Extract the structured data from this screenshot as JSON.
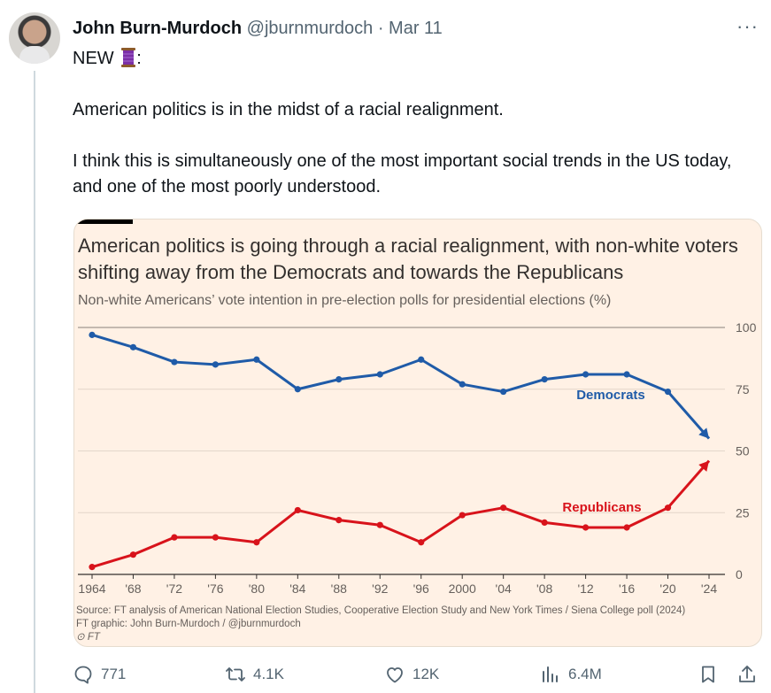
{
  "author": {
    "name": "John Burn-Murdoch",
    "handle": "@jburnmurdoch",
    "separator": "·",
    "date": "Mar 11"
  },
  "more_label": "···",
  "tweet": {
    "line1_prefix": "NEW ",
    "line1_suffix": ":",
    "line1_emoji": "thread-spool-icon",
    "paragraph1": "American politics is in the midst of a racial realignment.",
    "paragraph2": "I think this is simultaneously one of the most important social trends in the US today, and one of the most poorly understood."
  },
  "card": {
    "title": "American politics is going through a racial realignment, with non-white voters shifting away from the Democrats and towards the Republicans",
    "subtitle": "Non-white Americans’ vote intention in pre-election polls for presidential elections (%)",
    "source": "Source: FT analysis of American National Election Studies, Cooperative Election Study and New York Times / Siena College poll (2024)",
    "credit": "FT graphic: John Burn-Murdoch / @jburnmurdoch",
    "logo": "FT",
    "background": "#fff1e5"
  },
  "chart_data": {
    "type": "line",
    "title": "American politics is going through a racial realignment, with non-white voters shifting away from the Democrats and towards the Republicans",
    "subtitle": "Non-white Americans’ vote intention in pre-election polls for presidential elections (%)",
    "x": [
      "1964",
      "'68",
      "'72",
      "'76",
      "'80",
      "'84",
      "'88",
      "'92",
      "'96",
      "2000",
      "'04",
      "'08",
      "'12",
      "'16",
      "'20",
      "'24"
    ],
    "ylim": [
      0,
      100
    ],
    "yticks": [
      0,
      25,
      50,
      75,
      100
    ],
    "y_axis_side": "right",
    "grid": true,
    "series": [
      {
        "name": "Democrats",
        "color": "#1f5ba8",
        "values": [
          97,
          92,
          86,
          85,
          87,
          75,
          79,
          81,
          87,
          77,
          74,
          79,
          81,
          81,
          74,
          55
        ]
      },
      {
        "name": "Republicans",
        "color": "#d8131b",
        "values": [
          3,
          8,
          15,
          15,
          13,
          26,
          22,
          20,
          13,
          24,
          27,
          21,
          19,
          19,
          27,
          46
        ]
      }
    ]
  },
  "actions": {
    "reply_count": "771",
    "retweet_count": "4.1K",
    "like_count": "12K",
    "views_count": "6.4M"
  },
  "colors": {
    "text": "#0f1419",
    "secondary": "#536471",
    "democrats": "#1f5ba8",
    "republicans": "#d8131b"
  }
}
